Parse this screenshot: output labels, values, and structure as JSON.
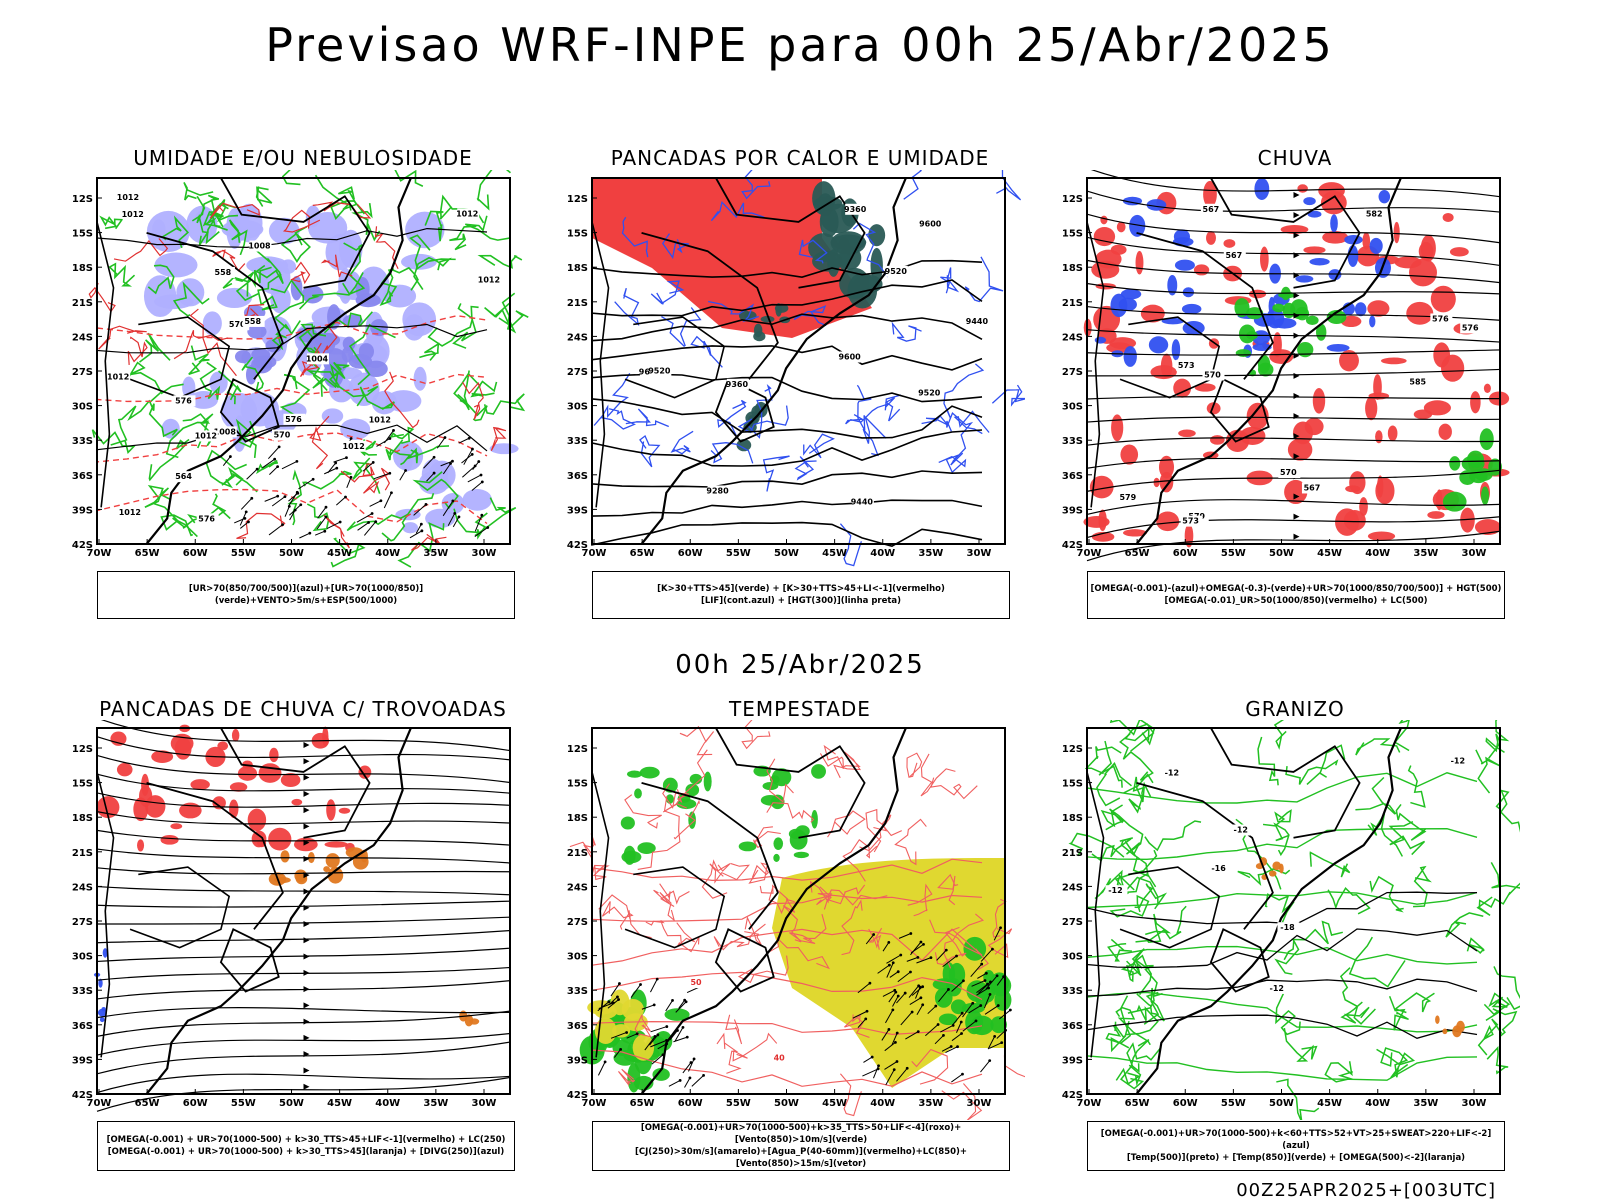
{
  "title": "Previsao WRF-INPE  para 00h 25/Abr/2025",
  "subtitle": "00h 25/Abr/2025",
  "footer": "00Z25APR2025+[003UTC]",
  "axes": {
    "lat_labels": [
      "12S",
      "15S",
      "18S",
      "21S",
      "24S",
      "27S",
      "30S",
      "33S",
      "36S",
      "39S",
      "42S"
    ],
    "lon_labels": [
      "70W",
      "65W",
      "60W",
      "55W",
      "50W",
      "45W",
      "40W",
      "35W",
      "30W"
    ]
  },
  "panels": [
    {
      "title": "UMIDADE E/OU NEBULOSIDADE",
      "legend": [
        "[UR>70(850/700/500)](azul)+[UR>70(1000/850)](verde)+VENTO>5m/s+ESP(500/1000)"
      ],
      "contour_labels": [
        "1012",
        "1012",
        "1012",
        "1012",
        "1012",
        "1012",
        "1008",
        "1008",
        "1012",
        "1012",
        "1012",
        "1004",
        "576",
        "576",
        "576",
        "570",
        "570",
        "564",
        "558",
        "558"
      ]
    },
    {
      "title": "PANCADAS POR CALOR E UMIDADE",
      "legend": [
        "[K>30+TTS>45](verde) + [K>30+TTS>45+LI<-1](vermelho)",
        "[LIF](cont.azul) + [HGT(300)](linha preta)"
      ],
      "contour_labels": [
        "9600",
        "9520",
        "9600",
        "9600",
        "9520",
        "9440",
        "9360",
        "9280",
        "9520",
        "9440",
        "9360"
      ]
    },
    {
      "title": "CHUVA",
      "legend": [
        "[OMEGA(-0.001)-(azul)+OMEGA(-0.3)-(verde)+UR>70(1000/850/700/500)] + HGT(500)",
        "[OMEGA(-0.01)_UR>50(1000/850)(vermelho) + LC(500)"
      ],
      "contour_labels": [
        "585",
        "582",
        "579",
        "576",
        "573",
        "570",
        "567",
        "567",
        "579",
        "576",
        "573",
        "570",
        "567"
      ]
    },
    {
      "title": "PANCADAS DE CHUVA C/ TROVOADAS",
      "legend": [
        "[OMEGA(-0.001) + UR>70(1000-500) + k>30_TTS>45+LIF<-1](vermelho) + LC(250)",
        "[OMEGA(-0.001) + UR>70(1000-500) + k>30_TTS>45](laranja) + [DIVG(250)](azul)"
      ],
      "contour_labels": []
    },
    {
      "title": "TEMPESTADE",
      "legend": [
        "[OMEGA(-0.001)+UR>70(1000-500)+k>35_TTS>50+LIF<-4](roxo)+[Vento(850)>10m/s](verde)",
        "[CJ(250)>30m/s](amarelo)+[Agua_P(40-60mm)](vermelho)+LC(850)+[Vento(850)>15m/s](vetor)"
      ],
      "contour_labels": [
        "50",
        "40"
      ]
    },
    {
      "title": "GRANIZO",
      "legend": [
        "[OMEGA(-0.001)+UR>70(1000-500)+k<60+TTS>52+VT>25+SWEAT>220+LIF<-2](azul)",
        "[Temp(500)](preto) + [Temp(850)](verde) + [OMEGA(500)<-2](laranja)"
      ],
      "contour_labels": [
        "-12",
        "-12",
        "-12",
        "-16",
        "-18",
        "-12",
        "-12"
      ]
    }
  ],
  "colors": {
    "red": "#f04040",
    "green": "#22c022",
    "blue": "#3050f0",
    "lavender": "#b0b0ff",
    "teal": "#2a5a55",
    "orange": "#e07820",
    "yellow": "#e0d830",
    "pink": "#f06060"
  }
}
